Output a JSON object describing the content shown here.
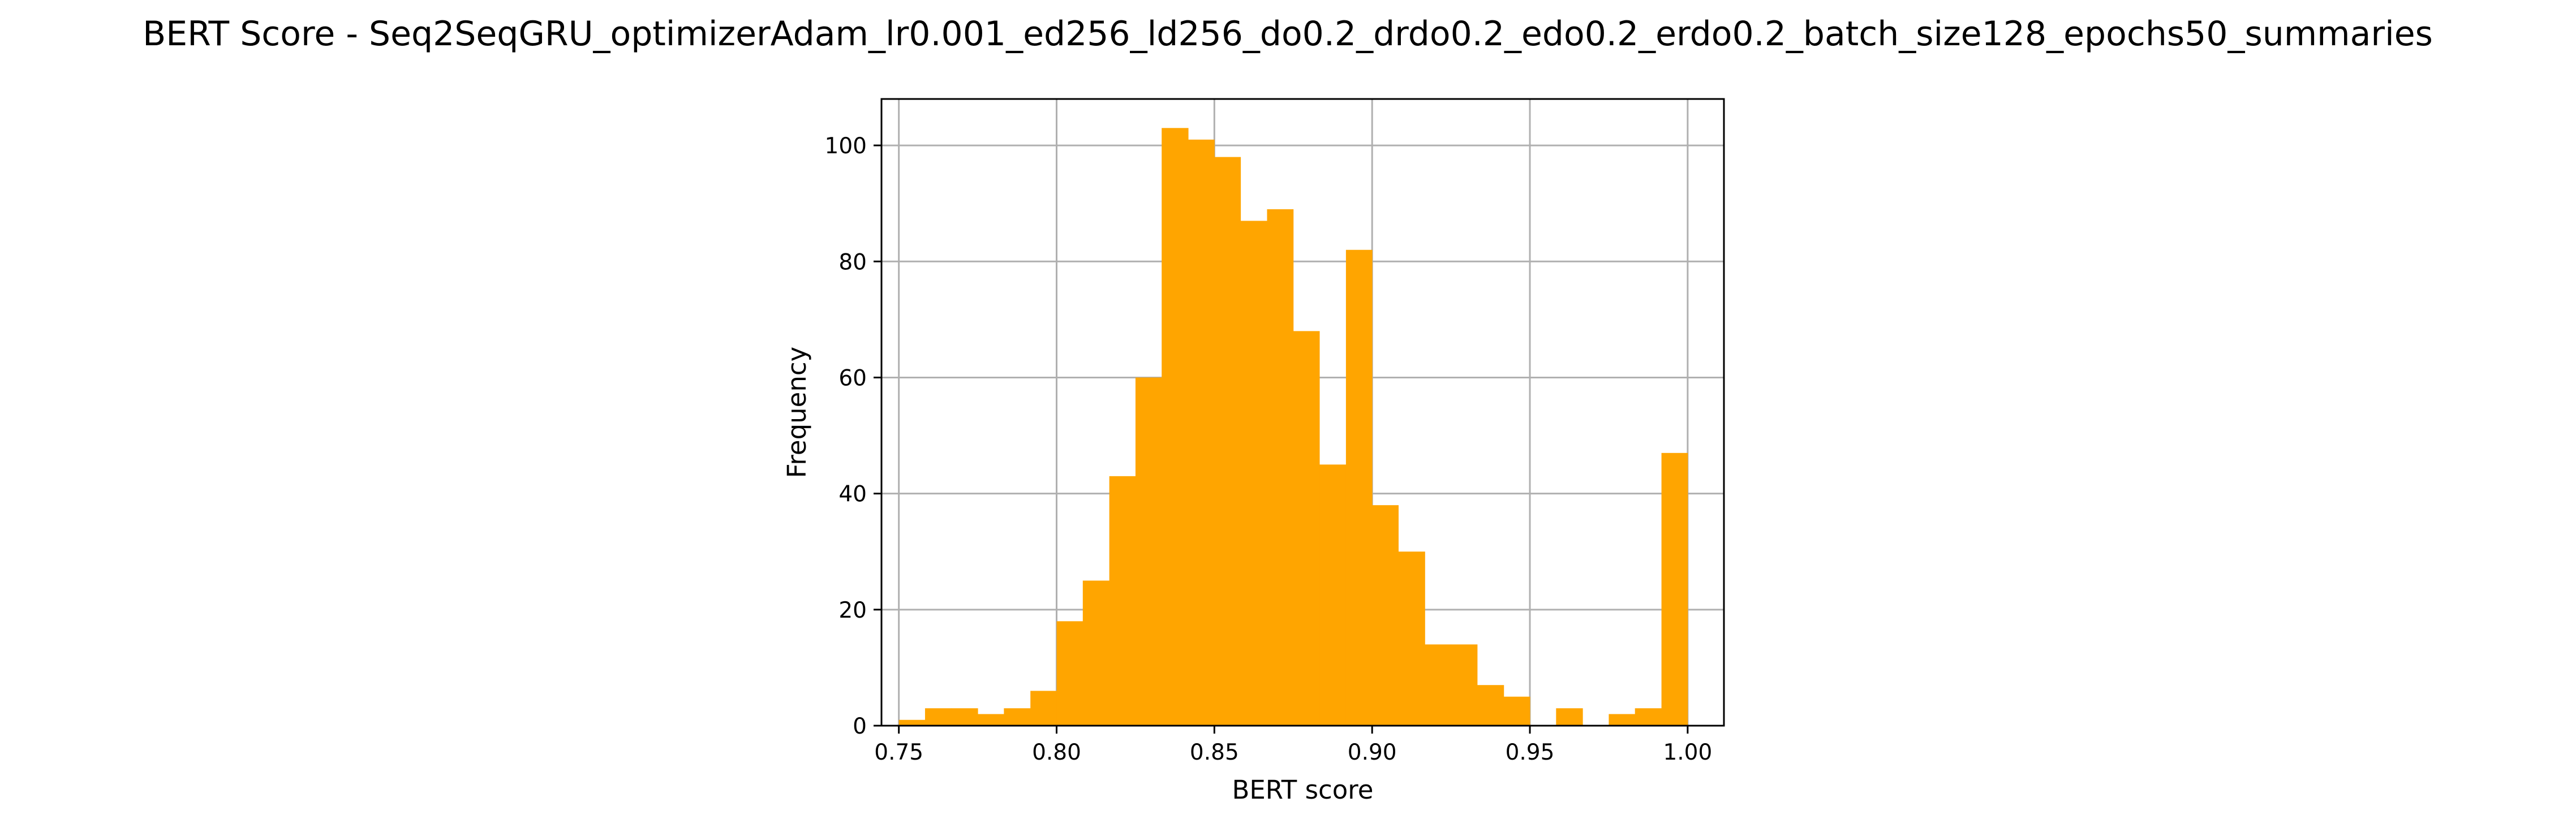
{
  "chart_data": {
    "type": "bar",
    "title": "BERT Score - Seq2SeqGRU_optimizerAdam_lr0.001_ed256_ld256_do0.2_drdo0.2_edo0.2_erdo0.2_batch_size128_epochs50_summaries",
    "xlabel": "BERT score",
    "ylabel": "Frequency",
    "xlim": [
      0.7445,
      1.0115
    ],
    "ylim": [
      0,
      108
    ],
    "xticks": [
      0.75,
      0.8,
      0.85,
      0.9,
      0.95,
      1.0
    ],
    "xtick_labels": [
      "0.75",
      "0.80",
      "0.85",
      "0.90",
      "0.95",
      "1.00"
    ],
    "yticks": [
      0,
      20,
      40,
      60,
      80,
      100
    ],
    "ytick_labels": [
      "0",
      "20",
      "40",
      "60",
      "80",
      "100"
    ],
    "grid": true,
    "bar_color": "#FFA500",
    "bins": [
      {
        "start": 0.75,
        "end": 0.7583,
        "count": 1
      },
      {
        "start": 0.7583,
        "end": 0.7667,
        "count": 3
      },
      {
        "start": 0.7667,
        "end": 0.775,
        "count": 3
      },
      {
        "start": 0.775,
        "end": 0.7833,
        "count": 2
      },
      {
        "start": 0.7833,
        "end": 0.7917,
        "count": 3
      },
      {
        "start": 0.7917,
        "end": 0.8,
        "count": 6
      },
      {
        "start": 0.8,
        "end": 0.8083,
        "count": 18
      },
      {
        "start": 0.8083,
        "end": 0.8167,
        "count": 25
      },
      {
        "start": 0.8167,
        "end": 0.825,
        "count": 43
      },
      {
        "start": 0.825,
        "end": 0.8333,
        "count": 60
      },
      {
        "start": 0.8333,
        "end": 0.8417,
        "count": 103
      },
      {
        "start": 0.8417,
        "end": 0.85,
        "count": 101
      },
      {
        "start": 0.85,
        "end": 0.8583,
        "count": 98
      },
      {
        "start": 0.8583,
        "end": 0.8667,
        "count": 87
      },
      {
        "start": 0.8667,
        "end": 0.875,
        "count": 89
      },
      {
        "start": 0.875,
        "end": 0.8833,
        "count": 68
      },
      {
        "start": 0.8833,
        "end": 0.8917,
        "count": 45
      },
      {
        "start": 0.8917,
        "end": 0.9,
        "count": 82
      },
      {
        "start": 0.9,
        "end": 0.9083,
        "count": 38
      },
      {
        "start": 0.9083,
        "end": 0.9167,
        "count": 30
      },
      {
        "start": 0.9167,
        "end": 0.925,
        "count": 14
      },
      {
        "start": 0.925,
        "end": 0.9333,
        "count": 14
      },
      {
        "start": 0.9333,
        "end": 0.9417,
        "count": 7
      },
      {
        "start": 0.9417,
        "end": 0.95,
        "count": 5
      },
      {
        "start": 0.95,
        "end": 0.9583,
        "count": 0
      },
      {
        "start": 0.9583,
        "end": 0.9667,
        "count": 3
      },
      {
        "start": 0.9667,
        "end": 0.975,
        "count": 0
      },
      {
        "start": 0.975,
        "end": 0.9833,
        "count": 2
      },
      {
        "start": 0.9833,
        "end": 0.9917,
        "count": 3
      },
      {
        "start": 0.9917,
        "end": 1.0,
        "count": 47
      }
    ]
  }
}
